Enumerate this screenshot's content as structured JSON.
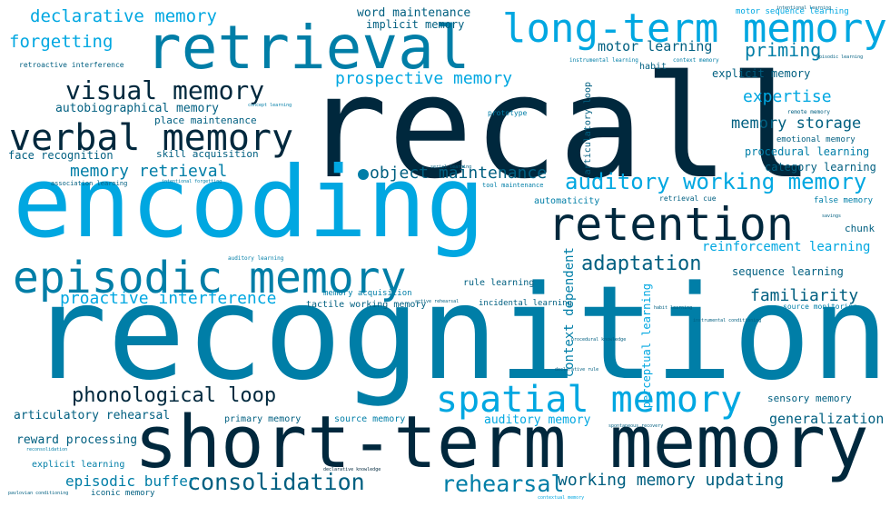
{
  "palette": {
    "darkest": "#00283d",
    "dark": "#005f80",
    "medium": "#007ea7",
    "light": "#00a7e1"
  },
  "words": {
    "recall": "recall",
    "recognition": "recognition",
    "encoding": "encoding",
    "short_term_memory": "short-term memory",
    "retrieval": "retrieval",
    "long_term_memory": "long-term memory",
    "episodic_memory": "episodic memory",
    "retention": "retention",
    "verbal_memory": "verbal memory",
    "visual_memory": "visual memory",
    "spatial_memory": "spatial memory",
    "auditory_working_memory": "auditory working memory",
    "declarative_memory": "declarative memory",
    "forgetting": "forgetting",
    "word_maintenance": "word maintenance",
    "implicit_memory": "implicit memory",
    "motor_sequence_learning": "motor sequence learning",
    "priming": "priming",
    "motor_learning": "motor learning",
    "habit": "habit",
    "explicit_memory": "explicit memory",
    "prospective_memory": "prospective memory",
    "autobiographical_memory": "autobiographical memory",
    "place_maintenance": "place maintenance",
    "skill_acquisition": "skill acquisition",
    "face_recognition": "face recognition",
    "memory_retrieval": "memory retrieval",
    "object_maintenance": "object maintenance",
    "expertise": "expertise",
    "memory_storage": "memory storage",
    "emotional_memory": "emotional memory",
    "procedural_learning": "procedural learning",
    "category_learning": "category learning",
    "automaticity": "automaticity",
    "retrieval_cue": "retrieval cue",
    "false_memory": "false memory",
    "chunk": "chunk",
    "adaptation": "adaptation",
    "reinforcement_learning": "reinforcement learning",
    "sequence_learning": "sequence learning",
    "proactive_interference": "proactive interference",
    "familiarity": "familiarity",
    "rule_learning": "rule learning",
    "memory_acquisition": "memory acquisition",
    "tactile_working_memory": "tactile working memory",
    "incidental_learning": "incidental learning",
    "source_monitoring": "source monitoring",
    "context_dependent": "context dependent",
    "perceptual_learning": "perceptual learning",
    "articulatory_loop": "articulatory loop",
    "phonological_loop": "phonological loop",
    "articulatory_rehearsal": "articulatory rehearsal",
    "primary_memory": "primary memory",
    "source_memory": "source memory",
    "auditory_memory": "auditory memory",
    "sensory_memory": "sensory memory",
    "generalization": "generalization",
    "reward_processing": "reward processing",
    "explicit_learning": "explicit learning",
    "episodic_buffer": "episodic buffer",
    "iconic_memory": "iconic memory",
    "consolidation": "consolidation",
    "rehearsal": "rehearsal",
    "working_memory_updating": "working memory updating",
    "retroactive_interference": "retroactive interference",
    "association_learning": "association learning",
    "tool_maintenance": "tool maintenance",
    "prototype": "prototype",
    "instrumental_learning": "instrumental learning",
    "context_memory": "context memory",
    "remote_memory": "remote memory",
    "intentional_learning": "intentional learning",
    "episodic_learning": "episodic learning",
    "reconsolidation": "reconsolidation",
    "declarative_knowledge": "declarative knowledge",
    "spontaneous_recovery": "spontaneous recovery",
    "procedural_knowledge": "procedural knowledge",
    "habit_learning": "habit learning",
    "instrumental_conditioning": "instrumental conditioning",
    "serial_learning": "serial learning",
    "concept_learning": "concept learning",
    "intentional_forgetting": "intentional forgetting",
    "auditory_learning": "auditory learning",
    "savings": "savings",
    "pavlovian_conditioning": "pavlovian conditioning",
    "declarative_rule": "declarative rule",
    "contextual_memory": "contextual memory",
    "active_rehearsal": "active rehearsal"
  }
}
